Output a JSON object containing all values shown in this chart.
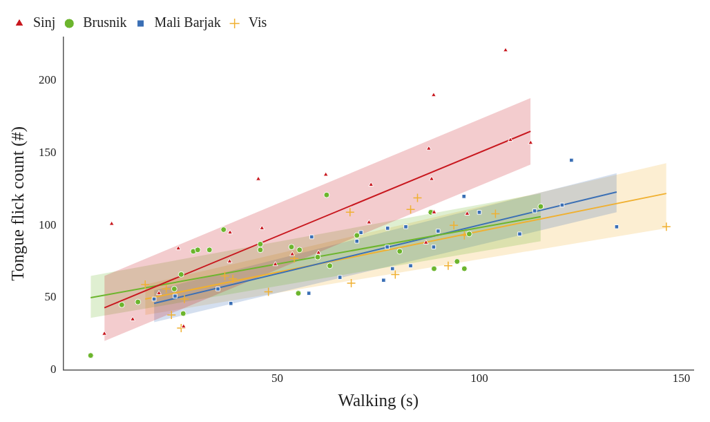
{
  "chart_data": {
    "type": "scatter",
    "xlabel": "Walking (s)",
    "ylabel": "Tongue flick count (#)",
    "xlim": [
      -3,
      153
    ],
    "xticks": [
      50,
      100,
      150
    ],
    "ylim": [
      0,
      230
    ],
    "yticks": [
      0,
      50,
      100,
      150,
      200
    ],
    "grid": false,
    "legend": "top left",
    "series": [
      {
        "name": "Sinj",
        "color": "#c8171e",
        "marker": "triangle",
        "x": [
          7.2,
          9,
          14.2,
          20.7,
          25.5,
          26.8,
          38.3,
          38.2,
          45.3,
          46.2,
          49.5,
          53.7,
          60.2,
          62,
          73.2,
          72.7,
          87.5,
          88.7,
          88.2,
          88.8,
          86.8,
          97,
          106.5,
          107.7,
          112.7
        ],
        "values": [
          25,
          101,
          35,
          53,
          84,
          30,
          95,
          75,
          132,
          98,
          73,
          80,
          81,
          135,
          128,
          102,
          153,
          190,
          132,
          109,
          88,
          108,
          221,
          159,
          157
        ]
      },
      {
        "name": "Brusnik",
        "color": "#6cb52d",
        "marker": "circle",
        "x": [
          3.8,
          11.5,
          15.5,
          24.5,
          26.7,
          26.2,
          29.2,
          30.3,
          33.2,
          36.7,
          45.8,
          45.8,
          53.5,
          55.5,
          55.2,
          60,
          63,
          62.2,
          69.7,
          80.3,
          88,
          88.8,
          94.5,
          96.3,
          97.5,
          115.2
        ],
        "values": [
          10,
          45,
          47,
          56,
          39,
          66,
          82,
          83,
          83,
          97,
          87,
          83,
          85,
          83,
          53,
          78,
          72,
          121,
          93,
          82,
          109,
          70,
          75,
          70,
          94,
          113
        ]
      },
      {
        "name": "Mali Barjak",
        "color": "#3a6fb5",
        "marker": "square",
        "x": [
          19.5,
          24.7,
          35.3,
          38.5,
          58.5,
          57.8,
          65.5,
          69.7,
          70.7,
          76.3,
          78.5,
          77.3,
          77.2,
          81.8,
          83,
          88.7,
          89.8,
          96.2,
          100,
          110,
          113.7,
          120.5,
          122.8,
          134
        ],
        "values": [
          49,
          51,
          56,
          46,
          92,
          53,
          64,
          89,
          95,
          62,
          70,
          98,
          85,
          99,
          72,
          85,
          96,
          120,
          109,
          94,
          110,
          114,
          145,
          99
        ]
      },
      {
        "name": "Vis",
        "color": "#f0b030",
        "marker": "cross",
        "x": [
          17.3,
          22.5,
          23.8,
          27,
          26.2,
          37,
          39,
          47.8,
          54.2,
          68,
          68.3,
          84.7,
          83,
          79.2,
          92.3,
          93.7,
          96.3,
          104,
          146.3
        ],
        "values": [
          59,
          56,
          38,
          49,
          29,
          65,
          63,
          54,
          77,
          109,
          60,
          119,
          111,
          66,
          72,
          100,
          93,
          108,
          99
        ]
      },
      {
        "type": "line",
        "color": "#c8171e",
        "marker": "none",
        "x": [
          7.2,
          112.7
        ],
        "values": [
          43,
          165
        ],
        "lower": [
          20,
          142
        ],
        "upper": [
          65,
          188
        ]
      },
      {
        "type": "line",
        "color": "#6cb52d",
        "marker": "none",
        "x": [
          3.8,
          115.2
        ],
        "values": [
          50,
          106
        ],
        "lower": [
          36,
          89
        ],
        "upper": [
          65,
          122
        ]
      },
      {
        "type": "line",
        "color": "#3a6fb5",
        "marker": "none",
        "x": [
          19.5,
          134
        ],
        "values": [
          46,
          123
        ],
        "lower": [
          33,
          109
        ],
        "upper": [
          55,
          136
        ]
      },
      {
        "type": "line",
        "color": "#f0b030",
        "marker": "none",
        "x": [
          17.3,
          146.3
        ],
        "values": [
          49,
          122
        ],
        "lower": [
          38,
          98
        ],
        "upper": [
          59,
          143
        ]
      }
    ]
  }
}
